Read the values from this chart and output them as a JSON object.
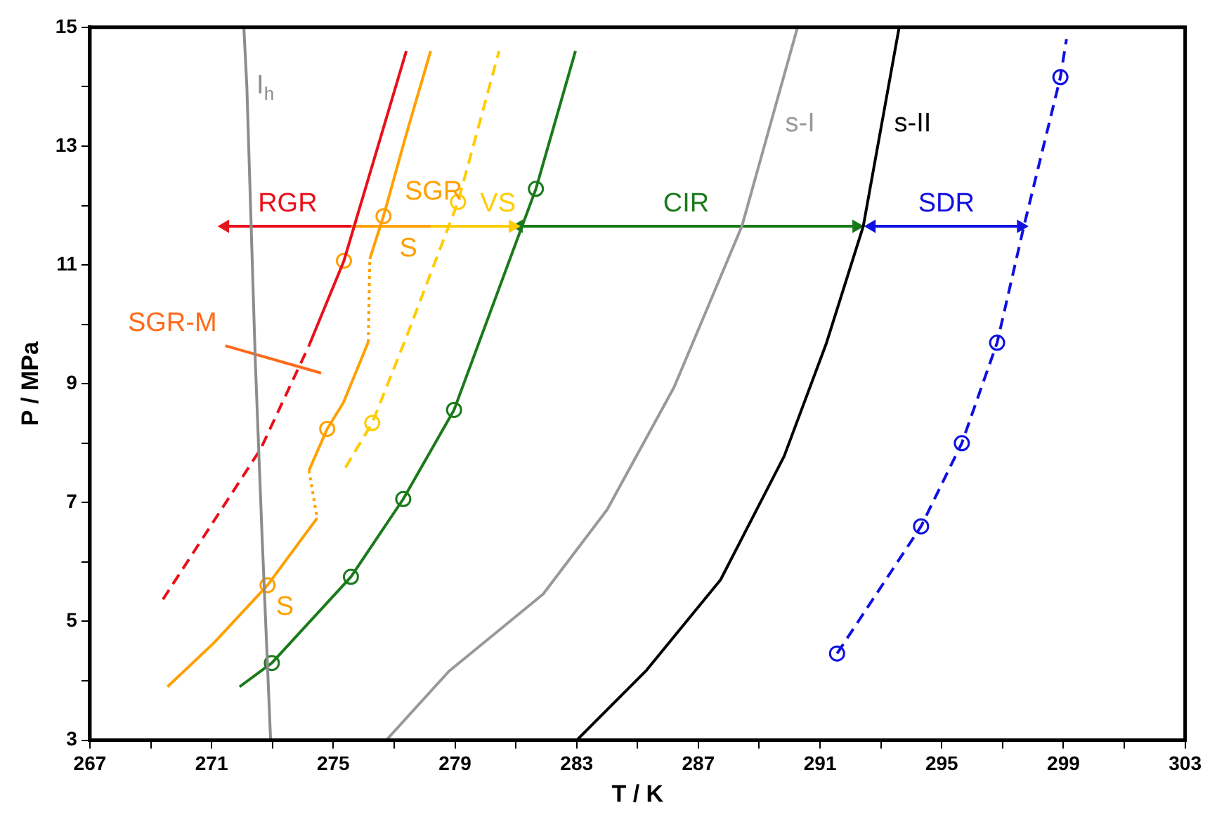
{
  "chart_data": {
    "type": "line",
    "xlabel": "T / K",
    "ylabel": "P / MPa",
    "xlim": [
      267,
      303
    ],
    "ylim": [
      3,
      15
    ],
    "xticks": [
      267,
      {
        "value": 269,
        "label": null
      },
      271,
      {
        "value": 273,
        "label": null
      },
      275,
      {
        "value": 277,
        "label": null
      },
      279,
      {
        "value": 281,
        "label": null
      },
      283,
      {
        "value": 285,
        "label": null
      },
      287,
      {
        "value": 289,
        "label": null
      },
      291,
      {
        "value": 293,
        "label": null
      },
      295,
      {
        "value": 297,
        "label": null
      },
      299,
      {
        "value": 301,
        "label": null
      },
      303
    ],
    "yticks": [
      3,
      {
        "value": 4,
        "label": null
      },
      5,
      {
        "value": 6,
        "label": null
      },
      7,
      {
        "value": 8,
        "label": null
      },
      9,
      {
        "value": 10,
        "label": null
      },
      11,
      {
        "value": 12,
        "label": null
      },
      13,
      {
        "value": 14,
        "label": null
      },
      15
    ],
    "grid": false,
    "legend": false,
    "series": [
      {
        "color": "#8c8c8c",
        "line_style": "solid",
        "x": [
          272.06,
          272.16,
          272.44,
          272.66,
          272.94
        ],
        "values": [
          15,
          13.99,
          9.33,
          6.43,
          3
        ]
      },
      {
        "color": "#999999",
        "line_style": "solid",
        "x": [
          276.74,
          278.8,
          281.9,
          284.0,
          286.2,
          288.43,
          290.26
        ],
        "values": [
          3,
          4.16,
          5.46,
          6.88,
          8.94,
          11.65,
          15
        ]
      },
      {
        "color": "#000000",
        "line_style": "solid",
        "x": [
          283.0,
          285.3,
          287.73,
          289.82,
          291.2,
          292.42,
          293.6
        ],
        "values": [
          3,
          4.18,
          5.7,
          7.78,
          9.67,
          11.65,
          15
        ]
      },
      {
        "color": "#e8101a",
        "line_style": "dashed",
        "x": [
          269.4,
          272.61,
          274.2
        ],
        "values": [
          5.37,
          7.9,
          9.64
        ]
      },
      {
        "color": "#e8101a",
        "line_style": "solid",
        "x": [
          274.2,
          275.35,
          277.4
        ],
        "values": [
          9.64,
          11.07,
          14.6
        ]
      },
      {
        "color": "#ffa000",
        "line_style": "solid",
        "x": [
          276.2,
          276.65,
          277.4,
          278.2
        ],
        "values": [
          11.1,
          11.82,
          13.2,
          14.6
        ]
      },
      {
        "color": "#ffa000",
        "line_style": "dotted",
        "x": [
          276.15,
          276.2
        ],
        "values": [
          9.7,
          11.1
        ]
      },
      {
        "color": "#ffa000",
        "line_style": "solid",
        "x": [
          274.2,
          274.8,
          275.33,
          276.15
        ],
        "values": [
          7.54,
          8.24,
          8.68,
          9.7
        ]
      },
      {
        "color": "#ffa000",
        "line_style": "dotted",
        "x": [
          274.2,
          274.47
        ],
        "values": [
          7.54,
          6.74
        ]
      },
      {
        "color": "#ffa000",
        "line_style": "solid",
        "x": [
          269.55,
          271.08,
          272.84,
          274.47
        ],
        "values": [
          3.9,
          4.64,
          5.61,
          6.74
        ]
      },
      {
        "color": "#ffcc00",
        "line_style": "dashed",
        "x": [
          275.4,
          276.28,
          277.42,
          279.1,
          280.45
        ],
        "values": [
          7.59,
          8.34,
          9.81,
          12.06,
          14.6
        ]
      },
      {
        "color": "#1a7a1a",
        "line_style": "solid",
        "x": [
          271.92,
          272.98,
          275.58,
          277.3,
          278.97,
          281.66,
          282.96
        ],
        "values": [
          3.9,
          4.3,
          5.75,
          7.06,
          8.56,
          12.28,
          14.6
        ]
      },
      {
        "color": "#1010e0",
        "line_style": "dashed",
        "x": [
          291.56,
          294.32,
          295.66,
          296.82,
          297.7,
          298.9,
          299.1
        ],
        "values": [
          4.46,
          6.6,
          8.0,
          9.69,
          11.65,
          14.16,
          14.8
        ]
      },
      {
        "color": "#ff6a1a",
        "line_style": "solid",
        "x": [
          271.45,
          274.6
        ],
        "values": [
          9.64,
          9.18
        ]
      },
      {
        "type": "scatter",
        "color": "#ffa000",
        "marker": "circle",
        "x": [
          275.35,
          276.65,
          274.8,
          272.84
        ],
        "values": [
          11.07,
          11.82,
          8.24,
          5.61
        ]
      },
      {
        "type": "scatter",
        "color": "#ffcc00",
        "marker": "circle",
        "x": [
          279.1,
          276.28
        ],
        "values": [
          12.06,
          8.34
        ]
      },
      {
        "type": "scatter",
        "color": "#1a7a1a",
        "marker": "circle",
        "x": [
          272.98,
          275.58,
          277.3,
          278.97,
          281.66
        ],
        "values": [
          4.3,
          5.75,
          7.06,
          8.56,
          12.28
        ]
      },
      {
        "type": "scatter",
        "color": "#1010e0",
        "marker": "circle",
        "x": [
          291.56,
          294.32,
          295.66,
          296.82,
          298.9
        ],
        "values": [
          4.46,
          6.6,
          8.0,
          9.69,
          14.16
        ]
      },
      {
        "color": "#e8101a",
        "line_style": "solid",
        "marker": "triangle",
        "x": [
          271.45,
          275.6
        ],
        "values": [
          11.65,
          11.65
        ]
      },
      {
        "color": "#ffa000",
        "line_style": "solid",
        "x": [
          275.6,
          278.2
        ],
        "values": [
          11.65,
          11.65
        ]
      },
      {
        "color": "#ffcc00",
        "line_style": "solid",
        "marker": "triangle",
        "x": [
          278.2,
          280.9
        ],
        "values": [
          11.65,
          11.65
        ]
      },
      {
        "color": "#1a7a1a",
        "line_style": "solid",
        "marker": "triangle",
        "x": [
          281.1,
          292.19
        ],
        "values": [
          11.65,
          11.65
        ]
      },
      {
        "color": "#1010e0",
        "line_style": "solid",
        "marker": "triangle",
        "x": [
          292.7,
          297.6
        ],
        "values": [
          11.65,
          11.65
        ]
      }
    ],
    "annotations": [
      {
        "text": "I$_{h}$",
        "x": 272.2,
        "y": 13.63
      },
      {
        "text": "s-I",
        "x": 289.58,
        "y": 13.75
      },
      {
        "text": "s-II",
        "x": 293.16,
        "y": 13.75
      },
      {
        "text": "RGR",
        "x": 273.5,
        "y": 11.65
      },
      {
        "text": "SGR",
        "x": 277.07,
        "y": 12.6
      },
      {
        "text": "S",
        "x": 276.9,
        "y": 11.65
      },
      {
        "text": "VS",
        "x": 279.55,
        "y": 11.65
      },
      {
        "text": "CIR",
        "x": 286.6,
        "y": 11.65
      },
      {
        "text": "SDR",
        "x": 295.15,
        "y": 11.65
      },
      {
        "text": "SGR-M",
        "x": 271.45,
        "y": 9.64
      },
      {
        "text": "S",
        "x": 272.84,
        "y": 5.61
      }
    ]
  }
}
